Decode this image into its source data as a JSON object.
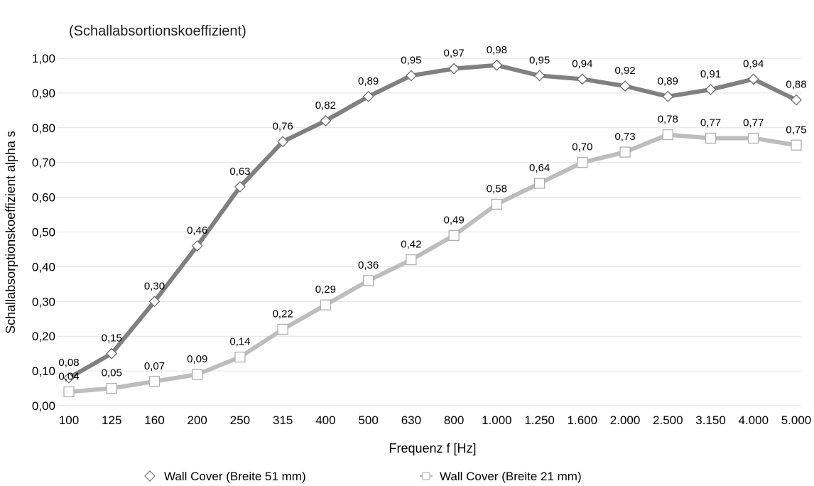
{
  "chart_data": {
    "type": "line",
    "title": "(Schallabsortionskoeffizient)",
    "xlabel": "Frequenz f [Hz]",
    "ylabel": "Schallabsorptionskoeffizient alpha s",
    "categories": [
      "100",
      "125",
      "160",
      "200",
      "250",
      "315",
      "400",
      "500",
      "630",
      "800",
      "1.000",
      "1.250",
      "1.600",
      "2.000",
      "2.500",
      "3.150",
      "4.000",
      "5.000"
    ],
    "ylim": [
      0,
      1
    ],
    "yticks": [
      "0,00",
      "0,10",
      "0,20",
      "0,30",
      "0,40",
      "0,50",
      "0,60",
      "0,70",
      "0,80",
      "0,90",
      "1,00"
    ],
    "grid": true,
    "legend_position": "bottom",
    "series": [
      {
        "name": "Wall Cover (Breite 51 mm)",
        "marker": "diamond",
        "color": "#808080",
        "values": [
          0.08,
          0.15,
          0.3,
          0.46,
          0.63,
          0.76,
          0.82,
          0.89,
          0.95,
          0.97,
          0.98,
          0.95,
          0.94,
          0.92,
          0.89,
          0.91,
          0.94,
          0.88
        ],
        "labels": [
          "0,08",
          "0,15",
          "0,30",
          "0,46",
          "0,63",
          "0,76",
          "0,82",
          "0,89",
          "0,95",
          "0,97",
          "0,98",
          "0,95",
          "0,94",
          "0,92",
          "0,89",
          "0,91",
          "0,94",
          "0,88"
        ]
      },
      {
        "name": "Wall Cover (Breite 21 mm)",
        "marker": "square",
        "color": "#bdbdbd",
        "values": [
          0.04,
          0.05,
          0.07,
          0.09,
          0.14,
          0.22,
          0.29,
          0.36,
          0.42,
          0.49,
          0.58,
          0.64,
          0.7,
          0.73,
          0.78,
          0.77,
          0.77,
          0.75
        ],
        "labels": [
          "0,04",
          "0,05",
          "0,07",
          "0,09",
          "0,14",
          "0,22",
          "0,29",
          "0,36",
          "0,42",
          "0,49",
          "0,58",
          "0,64",
          "0,70",
          "0,73",
          "0,78",
          "0,77",
          "0,77",
          "0,75"
        ]
      }
    ]
  }
}
